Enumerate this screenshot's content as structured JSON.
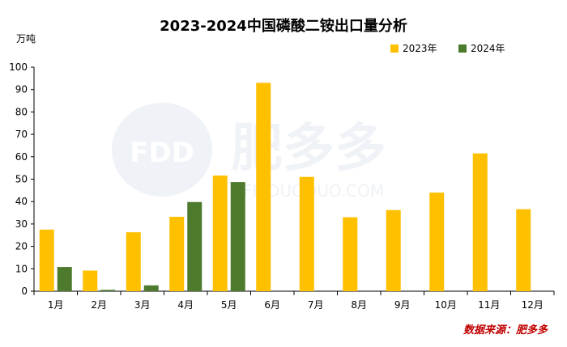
{
  "chart_data": {
    "type": "bar",
    "title": "2023-2024中国磷酸二铵出口量分析",
    "ylabel": "万吨",
    "xlabel": "",
    "ylim": [
      0,
      100
    ],
    "yticks": [
      0,
      10,
      20,
      30,
      40,
      50,
      60,
      70,
      80,
      90,
      100
    ],
    "grid": false,
    "legend_position": "top-right",
    "categories": [
      "1月",
      "2月",
      "3月",
      "4月",
      "5月",
      "6月",
      "7月",
      "8月",
      "9月",
      "10月",
      "11月",
      "12月"
    ],
    "series": [
      {
        "name": "2023年",
        "color": "#FFC000",
        "values": [
          27.5,
          9.2,
          26.3,
          33.2,
          51.6,
          93.0,
          51.0,
          33.0,
          36.2,
          44.0,
          61.5,
          36.6
        ]
      },
      {
        "name": "2024年",
        "color": "#4E7A2E",
        "values": [
          10.8,
          0.6,
          2.6,
          39.8,
          48.7,
          null,
          null,
          null,
          null,
          null,
          null,
          null
        ]
      }
    ]
  },
  "watermark": {
    "logo_text": "FDD",
    "brand_text": "肥多多",
    "url_text": "FEIDUODUO.COM"
  },
  "source": "数据来源：肥多多",
  "colors": {
    "axis": "#000000",
    "watermark": "#dfe6ee",
    "source": "#c00000"
  }
}
